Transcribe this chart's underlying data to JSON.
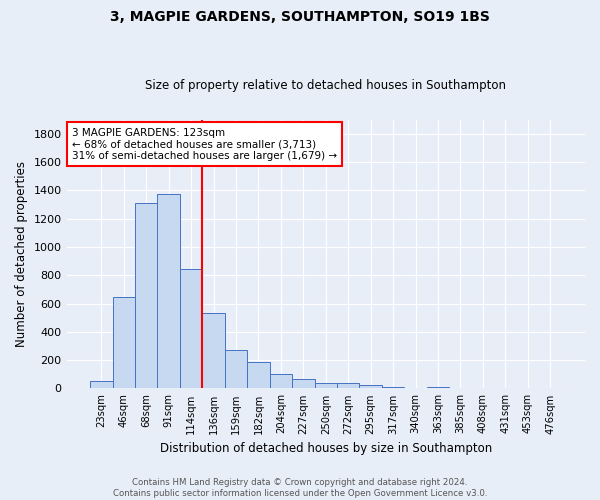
{
  "title": "3, MAGPIE GARDENS, SOUTHAMPTON, SO19 1BS",
  "subtitle": "Size of property relative to detached houses in Southampton",
  "xlabel": "Distribution of detached houses by size in Southampton",
  "ylabel": "Number of detached properties",
  "footer_line1": "Contains HM Land Registry data © Crown copyright and database right 2024.",
  "footer_line2": "Contains public sector information licensed under the Open Government Licence v3.0.",
  "bin_labels": [
    "23sqm",
    "46sqm",
    "68sqm",
    "91sqm",
    "114sqm",
    "136sqm",
    "159sqm",
    "182sqm",
    "204sqm",
    "227sqm",
    "250sqm",
    "272sqm",
    "295sqm",
    "317sqm",
    "340sqm",
    "363sqm",
    "385sqm",
    "408sqm",
    "431sqm",
    "453sqm",
    "476sqm"
  ],
  "bar_values": [
    55,
    645,
    1310,
    1375,
    845,
    530,
    275,
    185,
    105,
    65,
    35,
    35,
    25,
    12,
    0,
    12,
    0,
    0,
    0,
    0,
    0
  ],
  "bar_color": "#c6d9f0",
  "bar_edge_color": "#4472c4",
  "background_color": "#e8eef8",
  "grid_color": "#ffffff",
  "vline_x": 4.5,
  "vline_color": "red",
  "annotation_title": "3 MAGPIE GARDENS: 123sqm",
  "annotation_line1": "← 68% of detached houses are smaller (3,713)",
  "annotation_line2": "31% of semi-detached houses are larger (1,679) →",
  "ylim": [
    0,
    1900
  ],
  "yticks": [
    0,
    200,
    400,
    600,
    800,
    1000,
    1200,
    1400,
    1600,
    1800
  ]
}
